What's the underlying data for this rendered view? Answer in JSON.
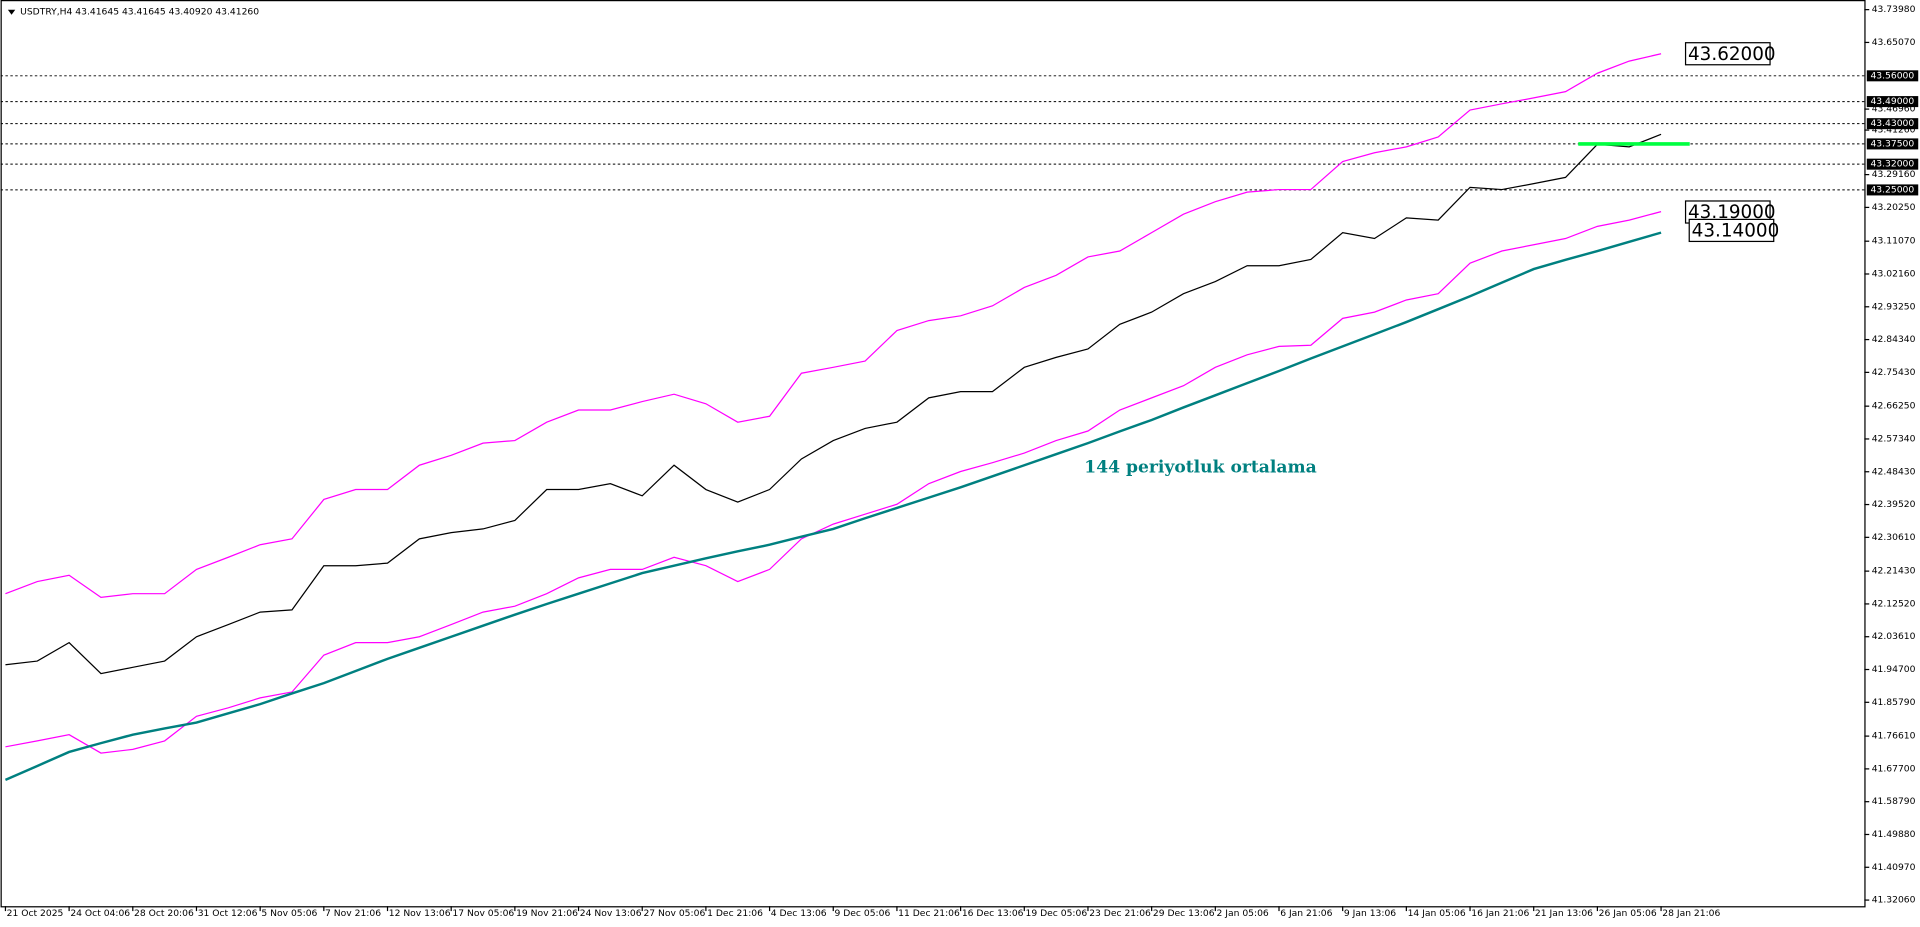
{
  "chart_data": {
    "type": "line",
    "title": "USDTRY,H4  43.41645 43.41645 43.40920 43.41260",
    "annotation": "144 periyotluk ortalama",
    "categories": [
      "21 Oct 2025",
      null,
      "24 Oct 04:06",
      null,
      "28 Oct 20:06",
      null,
      "31 Oct 12:06",
      null,
      "5 Nov 05:06",
      null,
      "7 Nov 21:06",
      null,
      "12 Nov 13:06",
      null,
      "17 Nov 05:06",
      null,
      "19 Nov 21:06",
      null,
      "24 Nov 13:06",
      null,
      "27 Nov 05:06",
      null,
      "1 Dec 21:06",
      null,
      "4 Dec 13:06",
      null,
      "9 Dec 05:06",
      null,
      "11 Dec 21:06",
      null,
      "16 Dec 13:06",
      null,
      "19 Dec 05:06",
      null,
      "23 Dec 21:06",
      null,
      "29 Dec 13:06",
      null,
      "2 Jan 05:06",
      null,
      "6 Jan 21:06",
      null,
      "9 Jan 13:06",
      null,
      "14 Jan 05:06",
      null,
      "16 Jan 21:06",
      null,
      "21 Jan 13:06",
      null,
      "26 Jan 05:06",
      null,
      "28 Jan 21:06"
    ],
    "series": [
      {
        "color": "#ff00ff",
        "values": [
          42.153,
          42.186,
          42.203,
          42.143,
          42.153,
          42.153,
          42.219,
          42.252,
          42.286,
          42.302,
          42.409,
          42.436,
          42.436,
          42.502,
          42.529,
          42.562,
          42.569,
          42.619,
          42.652,
          42.652,
          42.675,
          42.695,
          42.669,
          42.619,
          42.635,
          42.752,
          42.768,
          42.785,
          42.868,
          42.895,
          42.908,
          42.935,
          42.985,
          43.018,
          43.068,
          43.084,
          43.134,
          43.184,
          43.218,
          43.244,
          43.251,
          43.251,
          43.327,
          43.351,
          43.367,
          43.394,
          43.467,
          43.484,
          43.5,
          43.517,
          43.567,
          43.6,
          43.62
        ]
      },
      {
        "color": "#ff00ff",
        "values": [
          41.737,
          41.753,
          41.77,
          41.72,
          41.73,
          41.753,
          41.82,
          41.843,
          41.87,
          41.886,
          41.986,
          42.02,
          42.02,
          42.036,
          42.069,
          42.103,
          42.119,
          42.153,
          42.196,
          42.219,
          42.219,
          42.252,
          42.229,
          42.186,
          42.219,
          42.302,
          42.342,
          42.369,
          42.396,
          42.452,
          42.485,
          42.509,
          42.535,
          42.569,
          42.595,
          42.652,
          42.685,
          42.718,
          42.768,
          42.802,
          42.825,
          42.828,
          42.901,
          42.918,
          42.951,
          42.968,
          43.051,
          43.084,
          43.101,
          43.118,
          43.151,
          43.168,
          43.191
        ]
      },
      {
        "color": "#008080",
        "values": [
          41.647,
          41.685,
          41.723,
          41.747,
          41.77,
          41.787,
          41.803,
          41.828,
          41.853,
          41.882,
          41.91,
          41.943,
          41.976,
          42.006,
          42.036,
          42.066,
          42.096,
          42.125,
          42.153,
          42.181,
          42.209,
          42.229,
          42.249,
          42.268,
          42.286,
          42.308,
          42.329,
          42.358,
          42.386,
          42.414,
          42.442,
          42.472,
          42.502,
          42.532,
          42.562,
          42.594,
          42.625,
          42.659,
          42.692,
          42.725,
          42.758,
          42.792,
          42.825,
          42.858,
          42.891,
          42.926,
          42.961,
          42.998,
          43.035,
          43.06,
          43.084,
          43.109,
          43.134
        ]
      },
      {
        "color": "#000000",
        "values": [
          41.96,
          41.97,
          42.02,
          41.936,
          41.953,
          41.97,
          42.036,
          42.069,
          42.103,
          42.109,
          42.229,
          42.229,
          42.236,
          42.302,
          42.319,
          42.329,
          42.352,
          42.436,
          42.436,
          42.452,
          42.419,
          42.502,
          42.436,
          42.402,
          42.436,
          42.519,
          42.569,
          42.602,
          42.619,
          42.685,
          42.702,
          42.702,
          42.768,
          42.795,
          42.818,
          42.885,
          42.918,
          42.968,
          43.001,
          43.044,
          43.044,
          43.061,
          43.134,
          43.118,
          43.174,
          43.168,
          43.257,
          43.251,
          43.267,
          43.284,
          43.374,
          43.367,
          43.401
        ]
      }
    ],
    "ylim": [
      41.304,
      43.766
    ],
    "yticks": [
      {
        "value": 43.7398,
        "label": "43.73980"
      },
      {
        "value": 43.6507,
        "label": "43.65070"
      },
      {
        "value": 43.4696,
        "label": "43.46960"
      },
      {
        "value": 43.4126,
        "label": "43.41260"
      },
      {
        "value": 43.2916,
        "label": "43.29160"
      },
      {
        "value": 43.2025,
        "label": "43.20250"
      },
      {
        "value": 43.1107,
        "label": "43.11070"
      },
      {
        "value": 43.0216,
        "label": "43.02160"
      },
      {
        "value": 42.9325,
        "label": "42.93250"
      },
      {
        "value": 42.8434,
        "label": "42.84340"
      },
      {
        "value": 42.7543,
        "label": "42.75430"
      },
      {
        "value": 42.6625,
        "label": "42.66250"
      },
      {
        "value": 42.5734,
        "label": "42.57340"
      },
      {
        "value": 42.4843,
        "label": "42.48430"
      },
      {
        "value": 42.3952,
        "label": "42.39520"
      },
      {
        "value": 42.3061,
        "label": "42.30610"
      },
      {
        "value": 42.2143,
        "label": "42.21430"
      },
      {
        "value": 42.1252,
        "label": "42.12520"
      },
      {
        "value": 42.0361,
        "label": "42.03610"
      },
      {
        "value": 41.947,
        "label": "41.94700"
      },
      {
        "value": 41.8579,
        "label": "41.85790"
      },
      {
        "value": 41.7661,
        "label": "41.76610"
      },
      {
        "value": 41.677,
        "label": "41.67700"
      },
      {
        "value": 41.5879,
        "label": "41.58790"
      },
      {
        "value": 41.4988,
        "label": "41.49880"
      },
      {
        "value": 41.4097,
        "label": "41.40970"
      },
      {
        "value": 41.3206,
        "label": "41.32060"
      }
    ],
    "levels": [
      {
        "value": 43.56,
        "label": "43.56000"
      },
      {
        "value": 43.49,
        "label": "43.49000"
      },
      {
        "value": 43.43,
        "label": "43.43000"
      },
      {
        "value": 43.375,
        "label": "43.37500"
      },
      {
        "value": 43.32,
        "label": "43.32000"
      },
      {
        "value": 43.25,
        "label": "43.25000"
      }
    ],
    "price_labels": [
      {
        "value": 43.62,
        "label": "43.62000"
      },
      {
        "value": 43.19,
        "label": "43.19000"
      },
      {
        "value": 43.14,
        "label": "43.14000"
      }
    ],
    "support": {
      "value": 43.375,
      "color": "#00ff40"
    },
    "grid": false
  }
}
